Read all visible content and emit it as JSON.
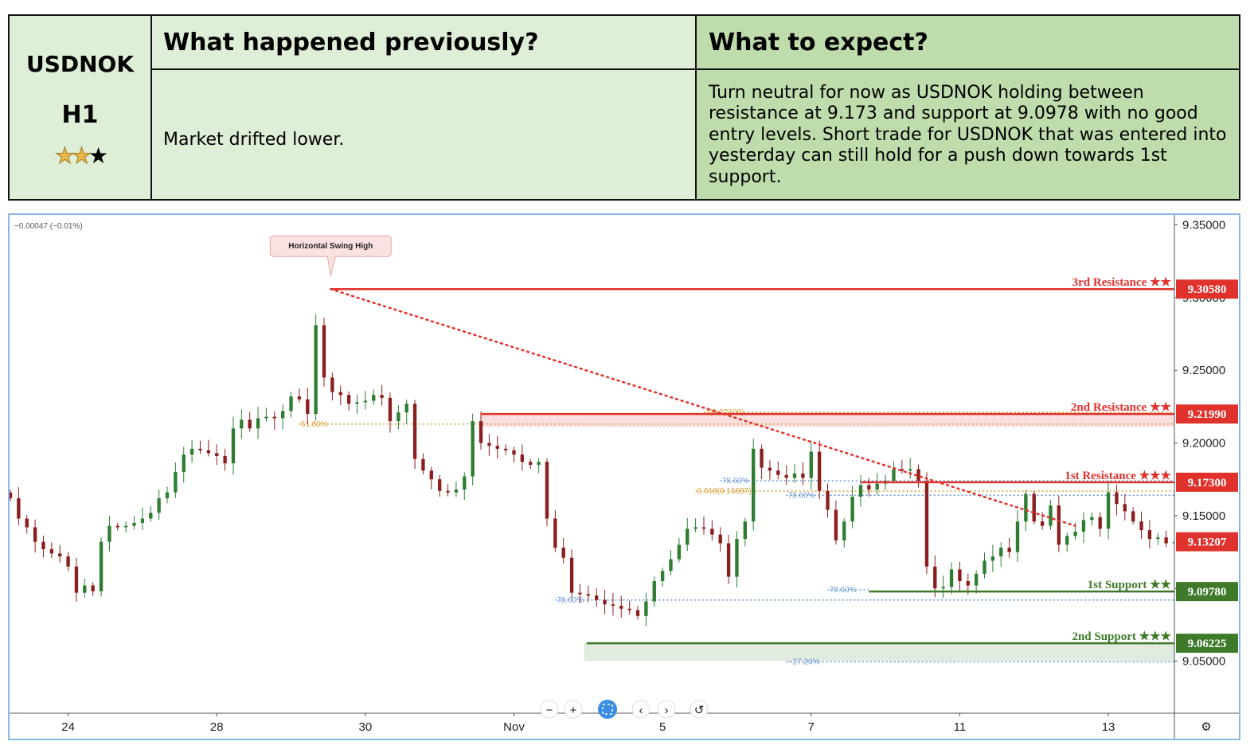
{
  "summary": {
    "symbol": "USDNOK",
    "timeframe": "H1",
    "stars_filled": 2,
    "stars_total": 3,
    "prev_header": "What happened previously?",
    "prev_body": "Market drifted lower.",
    "exp_header": "What to expect?",
    "exp_body": "Turn neutral for now as USDNOK holding between resistance at 9.173 and support at 9.0978 with no good entry levels. Short trade for USDNOK that was entered into yesterday can still hold for a push down towards 1st support."
  },
  "colors": {
    "table_light": "#dfeed7",
    "table_dark": "#bfdcad",
    "candle_up": "#2e7d32",
    "candle_down": "#8b1e1e",
    "resistance": "#e0322d",
    "support": "#3e7a2a",
    "fib_orange": "#d9a23b",
    "fib_blue": "#6d9bd6"
  },
  "chart_data": {
    "type": "candlestick",
    "title": "",
    "change_label": "−0.00047 (−0.01%)",
    "ylim": [
      9.0,
      9.36
    ],
    "xlim": [
      0,
      141
    ],
    "y_ticks": [
      9.35,
      9.3,
      9.25,
      9.2,
      9.15,
      9.1,
      9.05
    ],
    "y_tick_labels": [
      "9.35000",
      "9.30000",
      "9.25000",
      "9.20000",
      "9.15000",
      "9.10000",
      "9.05000"
    ],
    "x_ticks": [
      {
        "x": 7,
        "label": "24"
      },
      {
        "x": 25,
        "label": "28"
      },
      {
        "x": 43,
        "label": "30"
      },
      {
        "x": 61,
        "label": "Nov"
      },
      {
        "x": 79,
        "label": "5"
      },
      {
        "x": 97,
        "label": "7"
      },
      {
        "x": 115,
        "label": "11"
      },
      {
        "x": 133,
        "label": "13"
      }
    ],
    "candles_close": [
      9.162,
      9.148,
      9.142,
      9.132,
      9.127,
      9.124,
      9.122,
      9.115,
      9.097,
      9.102,
      9.098,
      9.132,
      9.143,
      9.142,
      9.143,
      9.145,
      9.148,
      9.152,
      9.162,
      9.166,
      9.18,
      9.192,
      9.196,
      9.195,
      9.193,
      9.191,
      9.186,
      9.21,
      9.216,
      9.21,
      9.217,
      9.218,
      9.217,
      9.222,
      9.232,
      9.23,
      9.22,
      9.281,
      9.245,
      9.235,
      9.233,
      9.227,
      9.228,
      9.229,
      9.233,
      9.231,
      9.215,
      9.221,
      9.227,
      9.189,
      9.181,
      9.175,
      9.167,
      9.166,
      9.168,
      9.177,
      9.215,
      9.2,
      9.198,
      9.196,
      9.195,
      9.192,
      9.187,
      9.185,
      9.187,
      9.148,
      9.128,
      9.121,
      9.097,
      9.096,
      9.095,
      9.092,
      9.089,
      9.088,
      9.086,
      9.085,
      9.081,
      9.091,
      9.105,
      9.112,
      9.12,
      9.13,
      9.141,
      9.142,
      9.141,
      9.137,
      9.131,
      9.108,
      9.134,
      9.146,
      9.196,
      9.183,
      9.181,
      9.178,
      9.176,
      9.179,
      9.176,
      9.194,
      9.167,
      9.154,
      9.133,
      9.146,
      9.163,
      9.171,
      9.168,
      9.172,
      9.174,
      9.182,
      9.181,
      9.182,
      9.174,
      9.115,
      9.1,
      9.101,
      9.113,
      9.105,
      9.102,
      9.11,
      9.119,
      9.122,
      9.128,
      9.125,
      9.146,
      9.165,
      9.146,
      9.143,
      9.157,
      9.13,
      9.136,
      9.139,
      9.147,
      9.149,
      9.141,
      9.166,
      9.158,
      9.153,
      9.146,
      9.14,
      9.134,
      9.135,
      9.131,
      9.132
    ],
    "last_price": "9.13207",
    "levels": [
      {
        "name": "3rd Resistance ★★",
        "value": 9.3058,
        "badge": "9.30580",
        "kind": "resistance",
        "x_start": 38.8
      },
      {
        "name": "2nd Resistance ★★",
        "value": 9.2199,
        "badge": "9.21990",
        "kind": "resistance",
        "x_start": 57
      },
      {
        "name": "1st Resistance ★★★",
        "value": 9.173,
        "badge": "9.17300",
        "kind": "resistance",
        "x_start": 103
      },
      {
        "name": "1st Support ★★",
        "value": 9.0978,
        "badge": "9.09780",
        "kind": "support",
        "x_start": 104
      },
      {
        "name": "2nd Support ★★★",
        "value": 9.06225,
        "badge": "9.06225",
        "kind": "support",
        "x_start": 69.8
      }
    ],
    "fib_lines": [
      {
        "label": "61.80%",
        "value": 9.213,
        "color": "orange",
        "x_start": 35,
        "x_end": 141
      },
      {
        "label": "1(9.22100)",
        "value": 9.221,
        "color": "orange",
        "x_start": 84,
        "x_end": 141
      },
      {
        "label": "0.618(9.16687)",
        "value": 9.1669,
        "color": "orange",
        "x_start": 83,
        "x_end": 141
      },
      {
        "label": "78.60%",
        "value": 9.174,
        "color": "blue",
        "x_start": 86,
        "x_end": 141
      },
      {
        "label": "78.60%",
        "value": 9.164,
        "color": "blue",
        "x_start": 94,
        "x_end": 141
      },
      {
        "label": "78.60%",
        "value": 9.092,
        "color": "blue",
        "x_start": 66,
        "x_end": 141
      },
      {
        "label": "78.60%",
        "value": 9.099,
        "color": "blue",
        "x_start": 99,
        "x_end": 104
      },
      {
        "label": "−27.20%",
        "value": 9.0495,
        "color": "blue",
        "x_start": 94,
        "x_end": 141
      }
    ],
    "zones": [
      {
        "kind": "resistance",
        "y_top": 9.2199,
        "y_bottom": 9.211,
        "x_start": 57,
        "x_end": 141
      },
      {
        "kind": "support",
        "y_top": 9.06225,
        "y_bottom": 9.05,
        "x_start": 69.5,
        "x_end": 141
      }
    ],
    "trendline": {
      "x1": 38.8,
      "y1": 9.3058,
      "x2": 129,
      "y2": 9.143
    },
    "annotation": {
      "text": "Horizontal Swing High",
      "x": 38.8,
      "y": 9.3058
    }
  },
  "controls": {
    "zoom_out": "−",
    "zoom_in": "+",
    "prev": "‹",
    "next": "›",
    "reset": "↺",
    "settings": "⚙"
  }
}
